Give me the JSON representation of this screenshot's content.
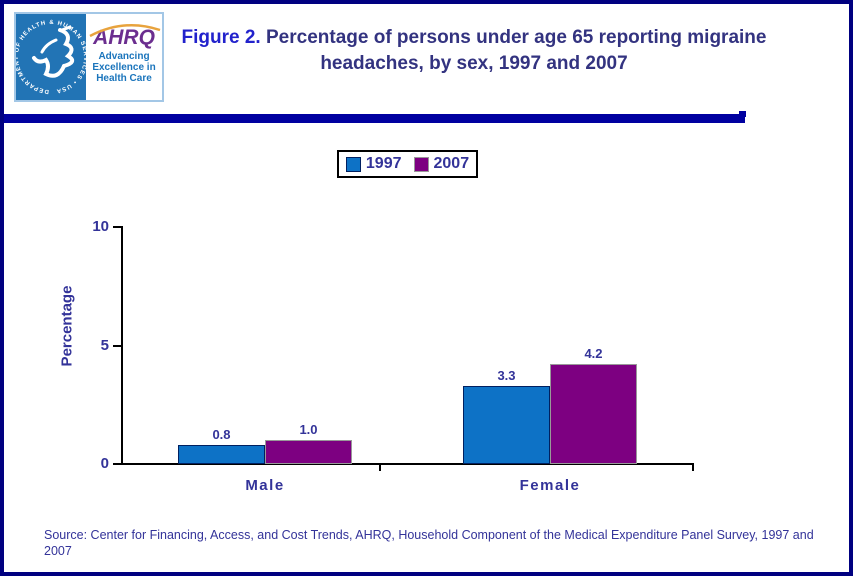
{
  "header": {
    "logo": {
      "hhs_emblem": "HHS eagle emblem",
      "hhs_circle_text": "DEPARTMENT OF HEALTH & HUMAN SERVICES • USA",
      "ahrq_acronym": "AHRQ",
      "ahrq_tagline_line1": "Advancing",
      "ahrq_tagline_line2": "Excellence in",
      "ahrq_tagline_line3": "Health Care"
    },
    "title_prefix": "Figure 2.",
    "title_rest": " Percentage of persons under age 65 reporting migraine headaches, by sex, 1997 and 2007",
    "accent_bar_color": "#0000a0"
  },
  "chart_data": {
    "type": "bar",
    "categories": [
      "Male",
      "Female"
    ],
    "series": [
      {
        "name": "1997",
        "color": "#0d72c6",
        "border_color": "#002060",
        "values": [
          0.8,
          3.3
        ],
        "value_labels": [
          "0.8",
          "3.3"
        ]
      },
      {
        "name": "2007",
        "color": "#7d0081",
        "border_color": "#999999",
        "values": [
          1.0,
          4.2
        ],
        "value_labels": [
          "1.0",
          "4.2"
        ]
      }
    ],
    "title": "",
    "xlabel": "",
    "ylabel": "Percentage",
    "ylim": [
      0,
      10
    ],
    "yticks": [
      0,
      5,
      10
    ],
    "ytick_labels": [
      "0",
      "5",
      "10"
    ],
    "grid": false,
    "legend_position": "top-center",
    "data_labels": true
  },
  "footer": {
    "source": "Source: Center for Financing, Access, and Cost Trends, AHRQ, Household Component of the Medical Expenditure Panel Survey, 1997 and 2007"
  }
}
